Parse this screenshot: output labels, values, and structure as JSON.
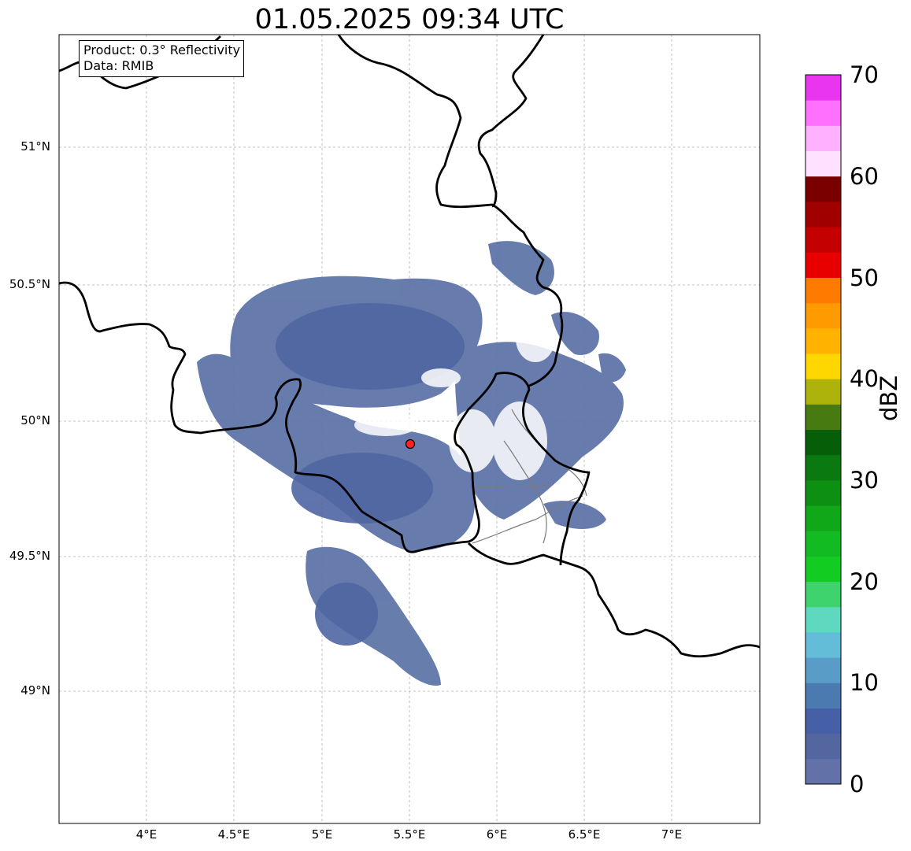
{
  "title": "01.05.2025 09:34 UTC",
  "info": {
    "product": "Product: 0.3° Reflectivity",
    "data": "Data: RMIB"
  },
  "axes": {
    "lon_ticks": [
      "4°E",
      "4.5°E",
      "5°E",
      "5.5°E",
      "6°E",
      "6.5°E",
      "7°E"
    ],
    "lat_ticks": [
      "51°N",
      "50.5°N",
      "50°N",
      "49.5°N",
      "49°N"
    ],
    "lon_range": [
      3.5,
      7.5
    ],
    "lat_range": [
      48.5,
      51.4
    ]
  },
  "radar_site": {
    "lon": 5.5,
    "lat": 49.92,
    "marker_color": "#ff2020"
  },
  "colorbar": {
    "label": "dBZ",
    "min": 0,
    "max": 70,
    "ticks": [
      "0",
      "10",
      "20",
      "30",
      "40",
      "50",
      "60",
      "70"
    ],
    "colors": [
      "#6272a8",
      "#5466a0",
      "#4560a6",
      "#4a7ab0",
      "#5a9cc8",
      "#63bcd8",
      "#5fd8c0",
      "#3fd36e",
      "#12cc22",
      "#12bb22",
      "#10a818",
      "#0d8f12",
      "#0a7a10",
      "#065f08",
      "#477a10",
      "#aeb30c",
      "#ffd700",
      "#ffb300",
      "#ff9a00",
      "#ff7b00",
      "#e80000",
      "#c40000",
      "#a00000",
      "#7a0000",
      "#ffe0ff",
      "#ffb0ff",
      "#ff70ff",
      "#e935f0"
    ]
  }
}
